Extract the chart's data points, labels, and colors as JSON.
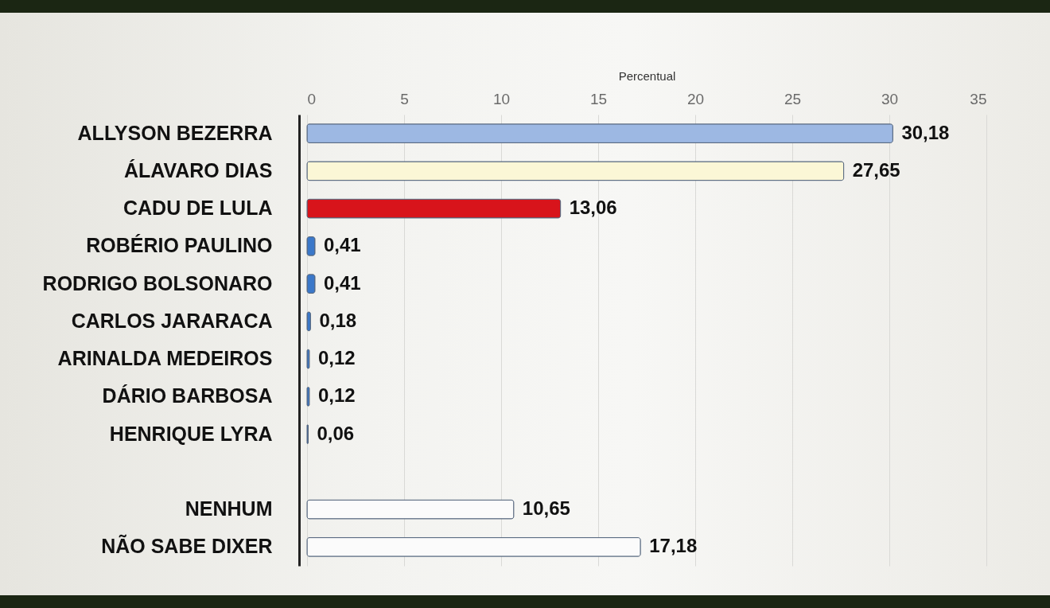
{
  "chart_data": {
    "type": "bar",
    "orientation": "horizontal",
    "xlabel": "Percentual",
    "categories": [
      "ALLYSON BEZERRA",
      "ÁLAVARO DIAS",
      "CADU DE LULA",
      "ROBÉRIO PAULINO",
      "RODRIGO BOLSONARO",
      "CARLOS JARARACA",
      "ARINALDA MEDEIROS",
      "DÁRIO BARBOSA",
      "HENRIQUE LYRA",
      null,
      "NENHUM",
      "NÃO SABE DIXER"
    ],
    "values": [
      30.18,
      27.65,
      13.06,
      0.41,
      0.41,
      0.18,
      0.12,
      0.12,
      0.06,
      null,
      10.65,
      17.18
    ],
    "colors": [
      "#9db8e3",
      "#fbf7d6",
      "#d8141b",
      "#3b78c9",
      "#3b78c9",
      "#3b78c9",
      "#3b78c9",
      "#3b78c9",
      "#3b78c9",
      null,
      "#fbfbfb",
      "#fbfbfb"
    ],
    "value_labels": [
      "30,18",
      "27,65",
      "13,06",
      "0,41",
      "0,41",
      "0,18",
      "0,12",
      "0,12",
      "0,06",
      null,
      "10,65",
      "17,18"
    ],
    "xlim": [
      0,
      35
    ],
    "xticks": [
      0,
      5,
      10,
      15,
      20,
      25,
      30,
      35
    ],
    "grid": "x"
  }
}
